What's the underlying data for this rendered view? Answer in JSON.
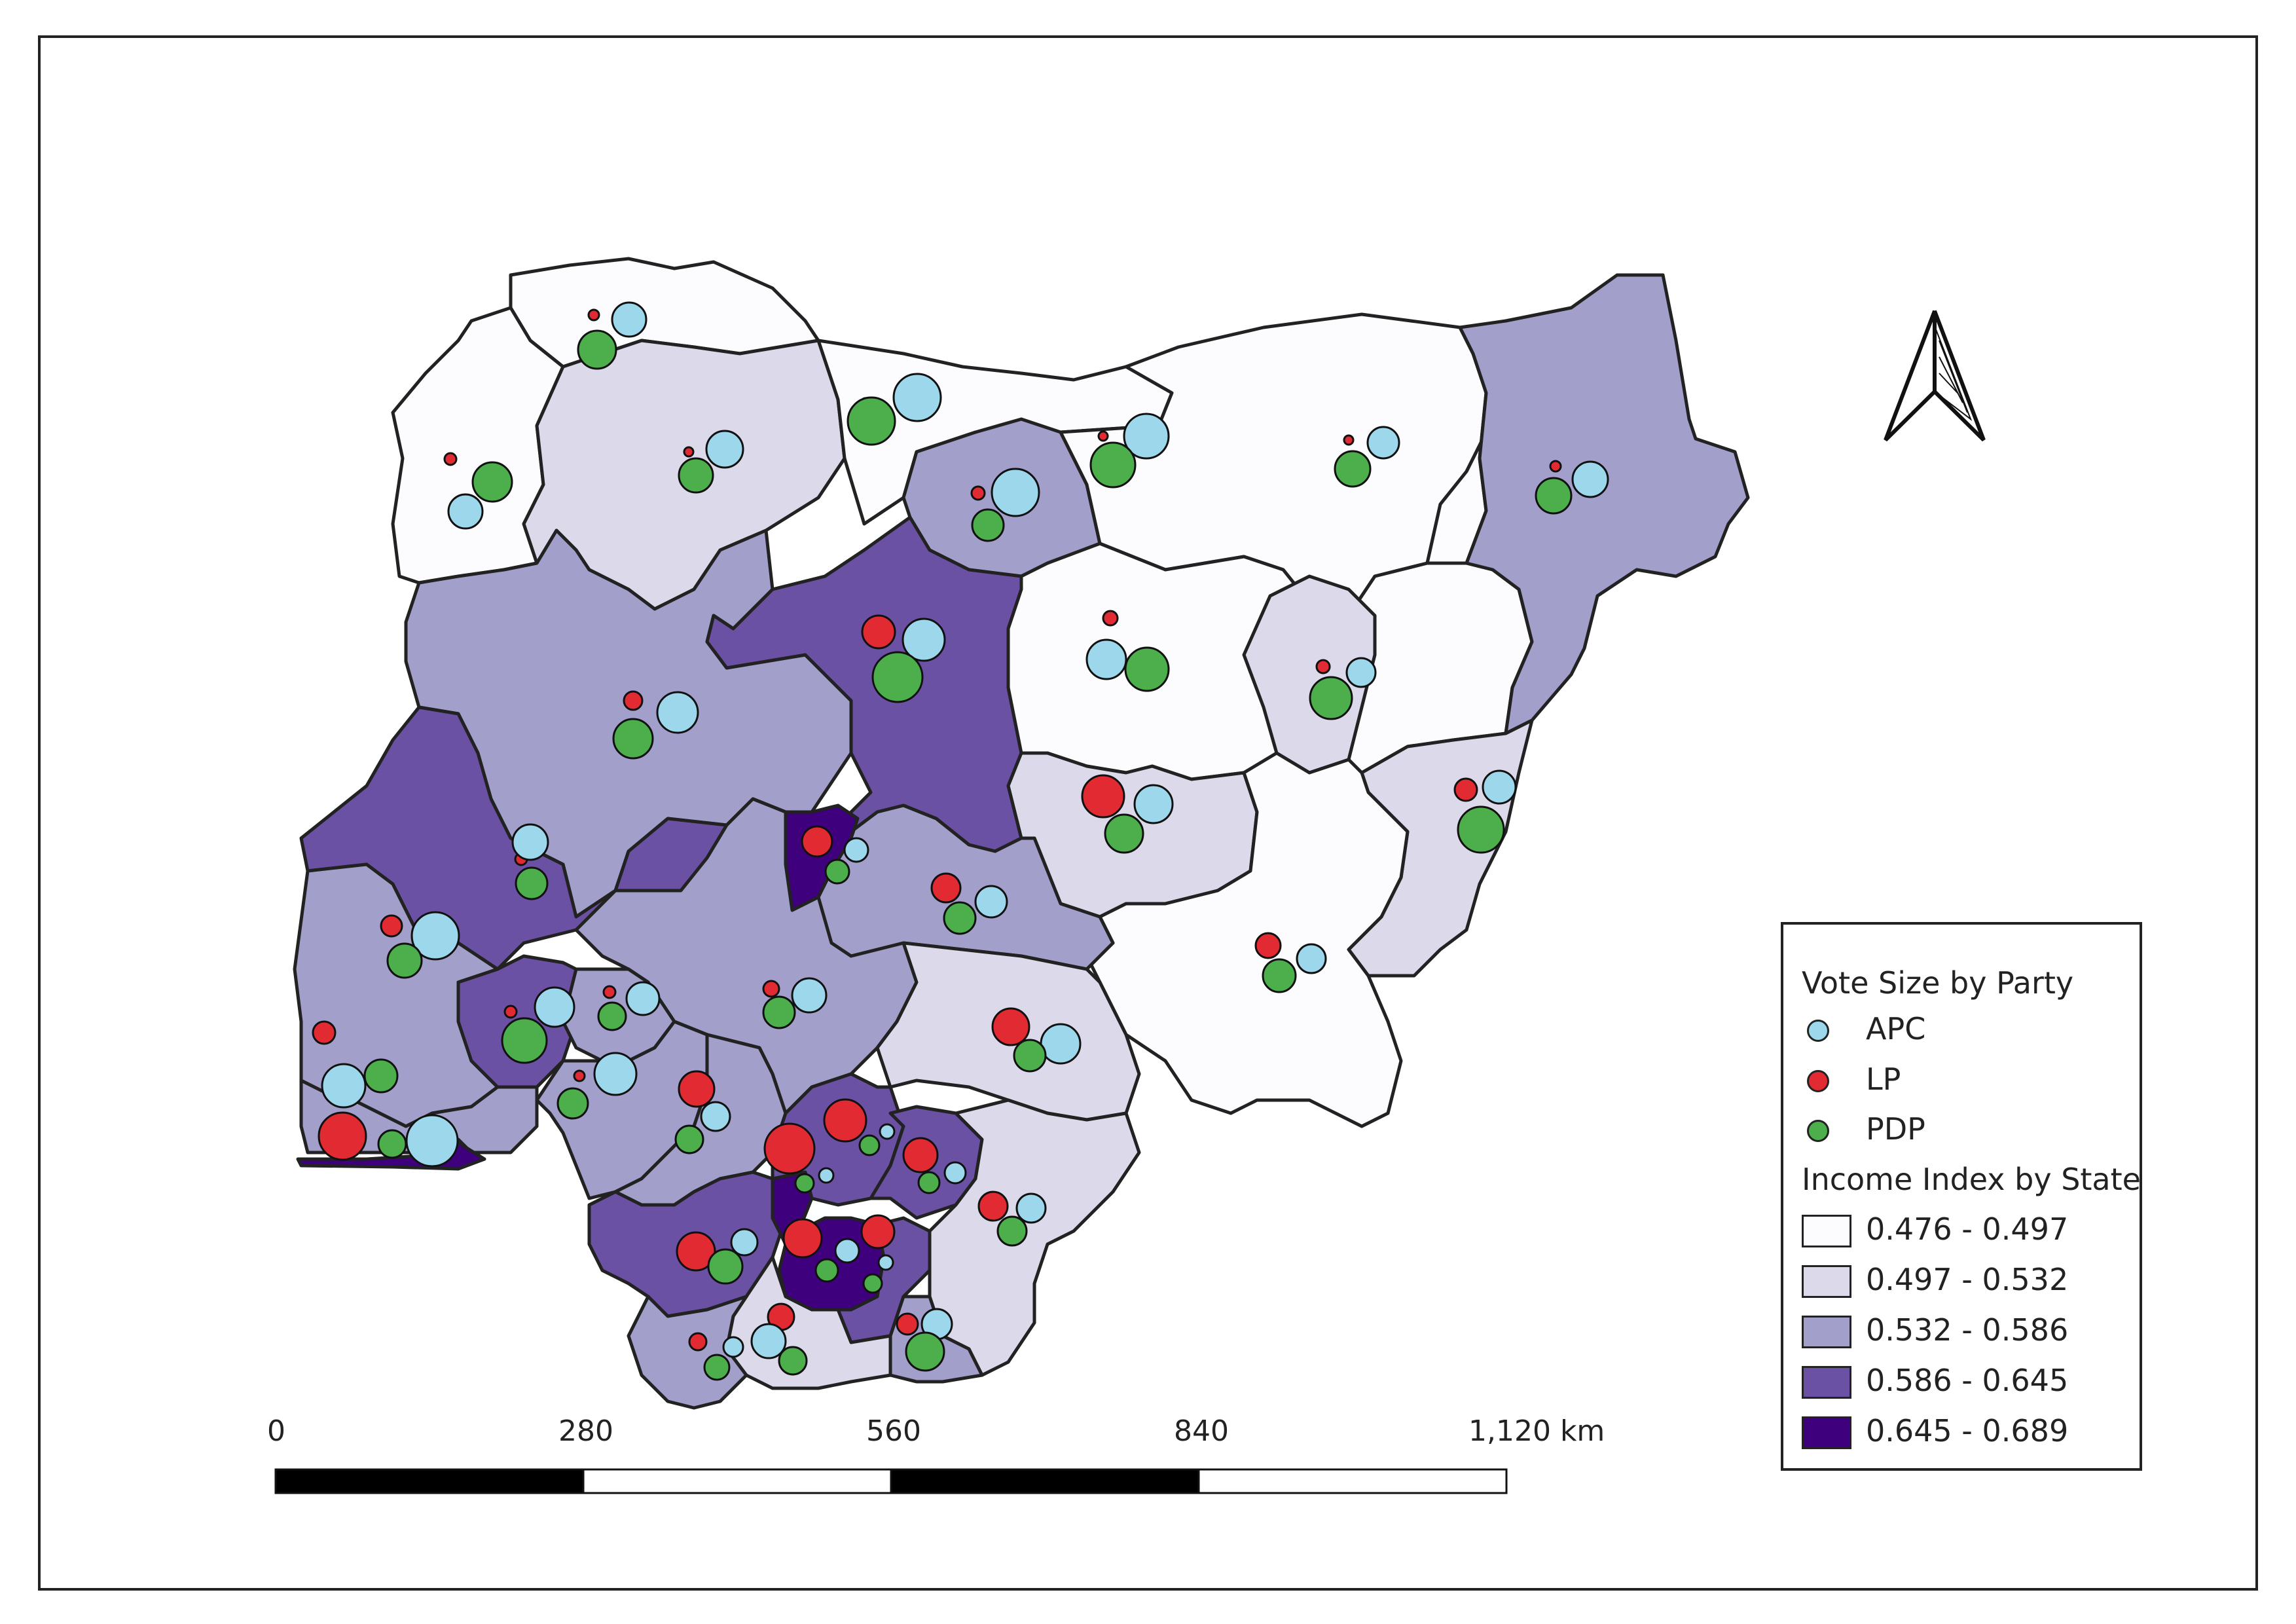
{
  "legend": {
    "vote_title": "Vote Size by Party",
    "parties": [
      {
        "label": "APC",
        "color": "#9dd7ec"
      },
      {
        "label": "LP",
        "color": "#e12a32"
      },
      {
        "label": "PDP",
        "color": "#4caf4c"
      }
    ],
    "income_title": "Income Index by State",
    "classes": [
      {
        "label": "0.476 - 0.497",
        "color": "#fcfbfd"
      },
      {
        "label": "0.497 - 0.532",
        "color": "#dcdaea"
      },
      {
        "label": "0.532 - 0.586",
        "color": "#a29fcb"
      },
      {
        "label": "0.586 - 0.645",
        "color": "#6b51a3"
      },
      {
        "label": "0.645 - 0.689",
        "color": "#3f007d"
      }
    ]
  },
  "scalebar": {
    "labels": [
      "0",
      "280",
      "560",
      "840",
      "1,120 km"
    ]
  },
  "north_arrow": {
    "icon": "north-arrow-icon"
  }
}
